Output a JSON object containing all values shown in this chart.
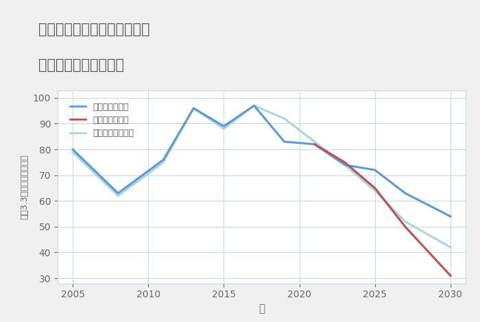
{
  "title_line1": "兵庫県たつの市龍野町富永の",
  "title_line2": "中古戸建ての価格推移",
  "xlabel": "年",
  "ylabel": "坪（3.3㎡）単価（万円）",
  "ylim": [
    28,
    103
  ],
  "xlim": [
    2004,
    2031
  ],
  "yticks": [
    30,
    40,
    50,
    60,
    70,
    80,
    90,
    100
  ],
  "xticks": [
    2005,
    2010,
    2015,
    2020,
    2025,
    2030
  ],
  "good_scenario": {
    "label": "グッドシナリオ",
    "color": "#5b9bd5",
    "x": [
      2005,
      2008,
      2011,
      2013,
      2015,
      2017,
      2019,
      2021,
      2023,
      2025,
      2027,
      2030
    ],
    "y": [
      80,
      63,
      76,
      96,
      89,
      97,
      83,
      82,
      74,
      72,
      63,
      54
    ]
  },
  "bad_scenario": {
    "label": "バッドシナリオ",
    "color": "#c0504d",
    "x": [
      2021,
      2023,
      2025,
      2027,
      2030
    ],
    "y": [
      82,
      75,
      65,
      50,
      31
    ]
  },
  "normal_scenario": {
    "label": "ノーマルシナリオ",
    "color": "#a8d4e6",
    "x": [
      2005,
      2008,
      2011,
      2013,
      2015,
      2017,
      2019,
      2021,
      2023,
      2025,
      2027,
      2030
    ],
    "y": [
      79,
      62,
      75,
      96,
      88,
      97,
      92,
      83,
      74,
      64,
      52,
      42
    ]
  },
  "background_color": "#f0f0f0",
  "plot_background": "#ffffff",
  "grid_color": "#c8d8e8",
  "title_color": "#555555",
  "axis_label_color": "#666666",
  "tick_color": "#666666",
  "line_width": 2.2
}
